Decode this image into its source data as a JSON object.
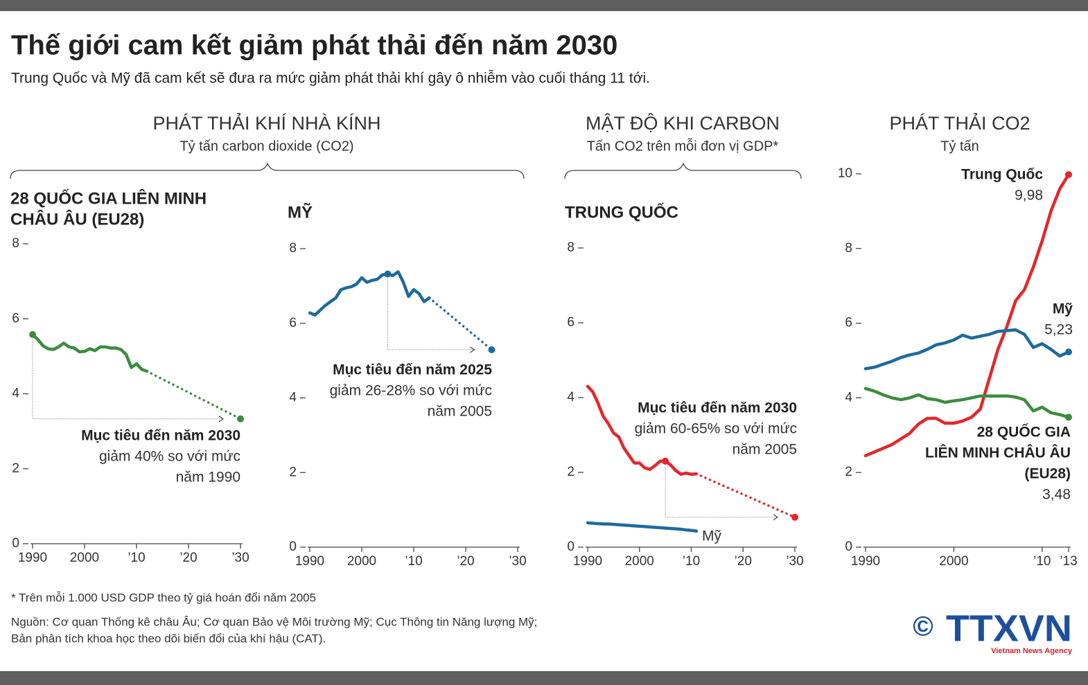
{
  "header": {
    "title": "Thế giới cam kết giảm phát thải đến năm 2030",
    "subtitle": "Trung Quốc và Mỹ đã cam kết sẽ đưa ra mức giảm phát thải khí gây ô nhiễm vào cuối tháng 11 tới."
  },
  "sections": [
    {
      "title": "PHÁT THẢI KHÍ NHÀ KÍNH",
      "subtitle": "Tỷ tấn carbon dioxide (CO2)"
    },
    {
      "title": "MẬT ĐỘ KHI CARBON",
      "subtitle": "Tấn CO2 trên mỗi đơn vị GDP*"
    },
    {
      "title": "PHÁT THẢI CO2",
      "subtitle": "Tỷ tấn"
    }
  ],
  "chart_data": [
    {
      "type": "line",
      "title": [
        "28 QUỐC GIA LIÊN MINH",
        "CHÂU ÂU (EU28)"
      ],
      "x": [
        1990,
        1991,
        1992,
        1993,
        1994,
        1995,
        1996,
        1997,
        1998,
        1999,
        2000,
        2001,
        2002,
        2003,
        2004,
        2005,
        2006,
        2007,
        2008,
        2009,
        2010,
        2011,
        2012,
        2030
      ],
      "series": [
        {
          "color": "#3c8c3f",
          "values": [
            5.58,
            5.45,
            5.28,
            5.2,
            5.18,
            5.25,
            5.35,
            5.25,
            5.22,
            5.12,
            5.13,
            5.2,
            5.15,
            5.25,
            5.25,
            5.22,
            5.22,
            5.18,
            5.05,
            4.7,
            4.8,
            4.65,
            4.6,
            null
          ]
        },
        {
          "color": "#3c8c3f",
          "dashed": true,
          "values": [
            null,
            null,
            null,
            null,
            null,
            null,
            null,
            null,
            null,
            null,
            null,
            null,
            null,
            null,
            null,
            null,
            null,
            null,
            null,
            null,
            null,
            null,
            4.6,
            3.33
          ]
        }
      ],
      "xlim": [
        1990,
        2030
      ],
      "ylim": [
        0,
        8
      ],
      "yticks": [
        0,
        2,
        4,
        6,
        8
      ],
      "xticks": [
        1990,
        2000,
        {
          "value": 2010,
          "label": "’10"
        },
        {
          "value": 2020,
          "label": "’20"
        },
        {
          "value": 2030,
          "label": "’30"
        }
      ],
      "annotation": {
        "title": "Mục tiêu đến năm 2030",
        "lines": [
          "giảm 40%  so với mức",
          "năm 1990"
        ],
        "base_x": 1990
      }
    },
    {
      "type": "line",
      "title": [
        "MỸ"
      ],
      "x": [
        1990,
        1991,
        1992,
        1993,
        1994,
        1995,
        1996,
        1997,
        1998,
        1999,
        2000,
        2001,
        2002,
        2003,
        2004,
        2005,
        2006,
        2007,
        2008,
        2009,
        2010,
        2011,
        2012,
        2013,
        2025
      ],
      "series": [
        {
          "color": "#1d6a9e",
          "values": [
            6.28,
            6.22,
            6.35,
            6.48,
            6.58,
            6.68,
            6.9,
            6.95,
            6.98,
            7.05,
            7.22,
            7.1,
            7.15,
            7.18,
            7.3,
            7.32,
            7.28,
            7.38,
            7.1,
            6.72,
            6.9,
            6.8,
            6.58,
            6.68,
            null
          ]
        },
        {
          "color": "#1d6a9e",
          "dashed": true,
          "values": [
            null,
            null,
            null,
            null,
            null,
            null,
            null,
            null,
            null,
            null,
            null,
            null,
            null,
            null,
            null,
            null,
            null,
            null,
            null,
            null,
            null,
            null,
            null,
            6.68,
            5.29
          ]
        }
      ],
      "xlim": [
        1990,
        2030
      ],
      "ylim": [
        0,
        8
      ],
      "yticks": [
        0,
        2,
        4,
        6,
        8
      ],
      "xticks": [
        1990,
        2000,
        {
          "value": 2010,
          "label": "’10"
        },
        {
          "value": 2020,
          "label": "’20"
        },
        {
          "value": 2030,
          "label": "’30"
        }
      ],
      "annotation": {
        "title": "Mục tiêu đến năm 2025",
        "lines": [
          "giảm 26-28% so với mức",
          "năm 2005"
        ],
        "base_x": 2005
      }
    },
    {
      "type": "line",
      "title": [
        "TRUNG QUỐC"
      ],
      "x": [
        1990,
        1991,
        1992,
        1993,
        1994,
        1995,
        1996,
        1997,
        1998,
        1999,
        2000,
        2001,
        2002,
        2003,
        2004,
        2005,
        2006,
        2007,
        2008,
        2009,
        2010,
        2011,
        2030
      ],
      "series": [
        {
          "color": "#e5262a",
          "values": [
            4.3,
            4.15,
            3.85,
            3.5,
            3.3,
            3.05,
            2.95,
            2.65,
            2.45,
            2.25,
            2.25,
            2.12,
            2.08,
            2.18,
            2.3,
            2.3,
            2.2,
            2.05,
            1.95,
            1.98,
            1.95,
            1.96,
            null
          ]
        },
        {
          "color": "#e5262a",
          "dashed": true,
          "values": [
            null,
            null,
            null,
            null,
            null,
            null,
            null,
            null,
            null,
            null,
            null,
            null,
            null,
            null,
            null,
            null,
            null,
            null,
            null,
            null,
            null,
            1.96,
            0.8
          ]
        },
        {
          "name": "Mỹ",
          "color": "#1d6a9e",
          "values": [
            0.65,
            0.64,
            0.63,
            0.62,
            0.62,
            0.61,
            0.6,
            0.59,
            0.58,
            0.57,
            0.56,
            0.55,
            0.54,
            0.53,
            0.52,
            0.51,
            0.5,
            0.49,
            0.48,
            0.46,
            0.45,
            0.43,
            null
          ]
        }
      ],
      "xlim": [
        1990,
        2030
      ],
      "ylim": [
        0,
        8
      ],
      "yticks": [
        0,
        2,
        4,
        6,
        8
      ],
      "xticks": [
        1990,
        2000,
        {
          "value": 2010,
          "label": "’10"
        },
        {
          "value": 2020,
          "label": "’20"
        },
        {
          "value": 2030,
          "label": "’30"
        }
      ],
      "annotation": {
        "title": "Mục tiêu đến năm 2030",
        "lines": [
          "giảm 60-65% so với mức",
          "năm 2005"
        ],
        "base_x": 2005
      }
    },
    {
      "type": "line",
      "x": [
        1990,
        1991,
        1992,
        1993,
        1994,
        1995,
        1996,
        1997,
        1998,
        1999,
        2000,
        2001,
        2002,
        2003,
        2004,
        2005,
        2006,
        2007,
        2008,
        2009,
        2010,
        2011,
        2012,
        2013
      ],
      "series": [
        {
          "name": [
            "Trung Quốc"
          ],
          "color": "#e5262a",
          "values": [
            2.45,
            2.55,
            2.65,
            2.75,
            2.9,
            3.05,
            3.3,
            3.45,
            3.45,
            3.32,
            3.32,
            3.38,
            3.48,
            3.7,
            4.5,
            5.3,
            5.9,
            6.6,
            6.9,
            7.5,
            8.2,
            9.0,
            9.6,
            9.98
          ],
          "value_labels": [
            null,
            null,
            null,
            null,
            null,
            null,
            null,
            null,
            null,
            null,
            null,
            null,
            null,
            null,
            null,
            null,
            null,
            null,
            null,
            null,
            null,
            null,
            null,
            "9,98"
          ]
        },
        {
          "name": [
            "Mỹ"
          ],
          "color": "#1d6a9e",
          "values": [
            4.78,
            4.82,
            4.9,
            4.98,
            5.08,
            5.15,
            5.2,
            5.3,
            5.42,
            5.47,
            5.55,
            5.68,
            5.6,
            5.65,
            5.7,
            5.78,
            5.8,
            5.82,
            5.7,
            5.35,
            5.45,
            5.3,
            5.12,
            5.23
          ],
          "value_labels": [
            null,
            null,
            null,
            null,
            null,
            null,
            null,
            null,
            null,
            null,
            null,
            null,
            null,
            null,
            null,
            null,
            null,
            null,
            null,
            null,
            null,
            null,
            null,
            "5,23"
          ]
        },
        {
          "name": [
            "28 QUỐC GIA",
            "LIÊN MINH CHÂU ÂU",
            "(EU28)"
          ],
          "color": "#3c8c3f",
          "values": [
            4.25,
            4.18,
            4.08,
            4.0,
            3.95,
            4.0,
            4.08,
            3.98,
            3.95,
            3.88,
            3.92,
            3.95,
            4.0,
            4.05,
            4.05,
            4.05,
            4.05,
            4.02,
            3.95,
            3.65,
            3.75,
            3.6,
            3.55,
            3.48
          ],
          "value_labels": [
            null,
            null,
            null,
            null,
            null,
            null,
            null,
            null,
            null,
            null,
            null,
            null,
            null,
            null,
            null,
            null,
            null,
            null,
            null,
            null,
            null,
            null,
            null,
            "3,48"
          ]
        }
      ],
      "xlim": [
        1990,
        2013
      ],
      "ylim": [
        0,
        10
      ],
      "yticks": [
        0,
        2,
        4,
        6,
        8,
        10
      ],
      "xticks": [
        1990,
        2000,
        {
          "value": 2010,
          "label": "’10"
        },
        {
          "value": 2013,
          "label": "’13"
        }
      ]
    }
  ],
  "footer": {
    "note": "* Trên mỗi 1.000 USD GDP theo tỷ giá hoán đổi năm 2005",
    "source_lines": [
      "Nguồn: Cơ quan Thống kê châu Âu; Cơ quan Bảo vệ Môi trường Mỹ; Cục Thông tin Năng lượng Mỹ;",
      "Bản phân tích khoa học theo dõi biến đổi của khí hậu (CAT)."
    ],
    "copyright": "©",
    "logo": "TTXVN",
    "logo_sub": "Vietnam News Agency"
  }
}
